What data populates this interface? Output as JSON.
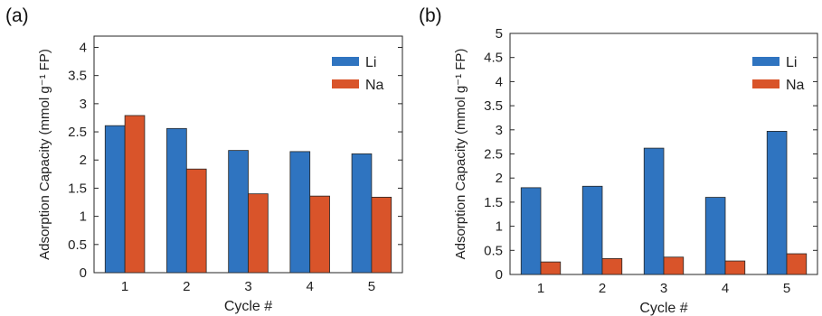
{
  "panels": [
    {
      "label": "(a)",
      "chart_data": {
        "type": "bar",
        "categories": [
          "1",
          "2",
          "3",
          "4",
          "5"
        ],
        "series": [
          {
            "name": "Li",
            "values": [
              2.61,
              2.56,
              2.17,
              2.15,
              2.11
            ]
          },
          {
            "name": "Na",
            "values": [
              2.79,
              1.84,
              1.4,
              1.36,
              1.34
            ]
          }
        ],
        "title": "",
        "xlabel": "Cycle #",
        "ylabel": "Adsorption Capacity (mmol g⁻¹ FP)",
        "ylim": [
          0,
          4.2
        ],
        "yticks": [
          "0",
          "0.5",
          "1",
          "1.5",
          "2",
          "2.5",
          "3",
          "3.5",
          "4"
        ],
        "grid": false,
        "legend_position": "top-right"
      }
    },
    {
      "label": "(b)",
      "chart_data": {
        "type": "bar",
        "categories": [
          "1",
          "2",
          "3",
          "4",
          "5"
        ],
        "series": [
          {
            "name": "Li",
            "values": [
              1.8,
              1.83,
              2.62,
              1.6,
              2.97
            ]
          },
          {
            "name": "Na",
            "values": [
              0.26,
              0.33,
              0.36,
              0.28,
              0.43
            ]
          }
        ],
        "title": "",
        "xlabel": "Cycle #",
        "ylabel": "Adsorption Capacity (mmol g⁻¹ FP)",
        "ylim": [
          0,
          5
        ],
        "yticks": [
          "0",
          "0.5",
          "1",
          "1.5",
          "2",
          "2.5",
          "3",
          "3.5",
          "4",
          "4.5",
          "5"
        ],
        "grid": false,
        "legend_position": "top-right"
      }
    }
  ],
  "colors": {
    "Li": "#2F74C0",
    "Na": "#D9542A"
  }
}
